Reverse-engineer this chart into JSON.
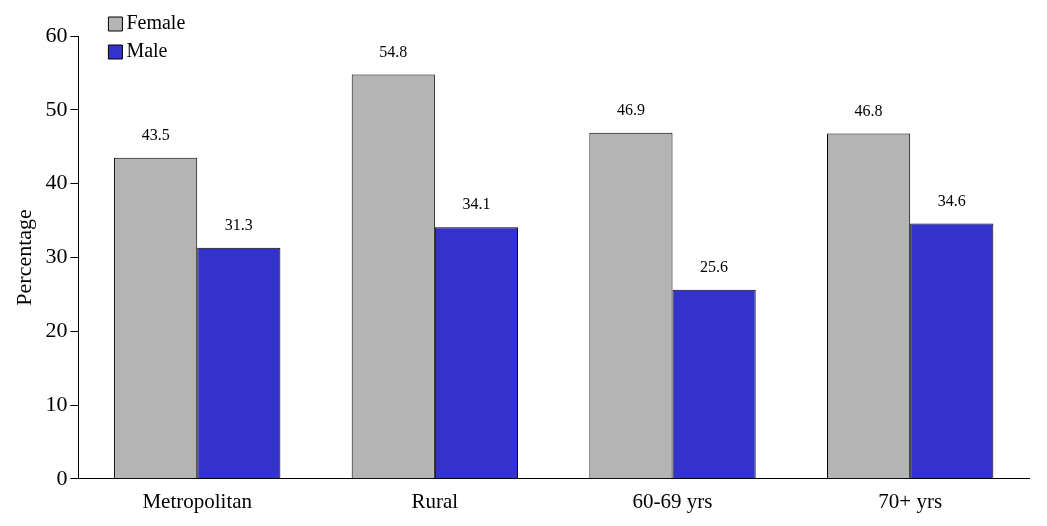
{
  "chart_data": {
    "type": "bar",
    "ylabel": "Percentage",
    "categories": [
      "Metropolitan",
      "Rural",
      "60-69 yrs",
      "70+ yrs"
    ],
    "series": [
      {
        "name": "Female",
        "color": "#b4b4b4",
        "values": [
          43.5,
          54.8,
          46.9,
          46.8
        ]
      },
      {
        "name": "Male",
        "color": "#3333cc",
        "values": [
          31.3,
          34.1,
          25.6,
          34.6
        ]
      }
    ],
    "ylim": [
      0,
      60
    ],
    "yticks": [
      0,
      10,
      20,
      30,
      40,
      50,
      60
    ],
    "data_labels": true,
    "legend": "top left",
    "grid": false
  }
}
